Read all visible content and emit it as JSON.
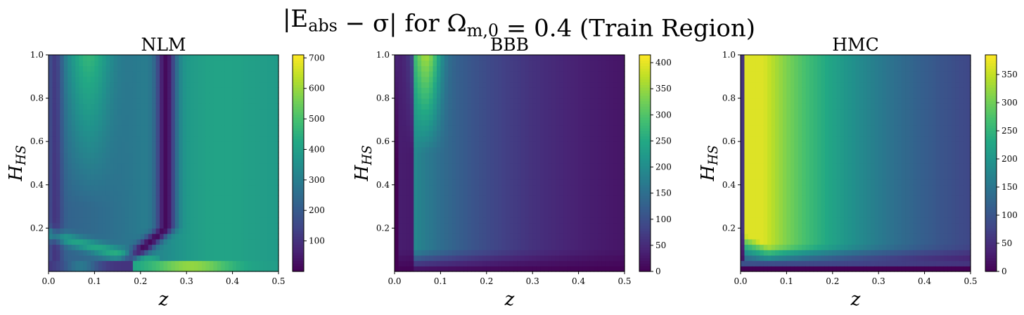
{
  "figure": {
    "suptitle": "|E_abs − σ| for Ω_{m,0} = 0.4 (Train Region)"
  },
  "chart_data": [
    {
      "type": "heatmap",
      "title": "NLM",
      "xlabel": "z",
      "ylabel": "H_HS",
      "xlim": [
        0.0,
        0.5
      ],
      "ylim": [
        0.0,
        1.0
      ],
      "xticks": [
        "0.0",
        "0.1",
        "0.2",
        "0.3",
        "0.4",
        "0.5"
      ],
      "yticks": [
        "0.2",
        "0.4",
        "0.6",
        "0.8",
        "1.0"
      ],
      "colormap": "viridis",
      "colorbar": {
        "range": [
          0,
          710
        ],
        "ticks": [
          "100",
          "200",
          "300",
          "400",
          "500",
          "600",
          "700"
        ]
      },
      "pattern": "nlm"
    },
    {
      "type": "heatmap",
      "title": "BBB",
      "xlabel": "z",
      "ylabel": "H_HS",
      "xlim": [
        0.0,
        0.5
      ],
      "ylim": [
        0.0,
        1.0
      ],
      "xticks": [
        "0.0",
        "0.1",
        "0.2",
        "0.3",
        "0.4",
        "0.5"
      ],
      "yticks": [
        "0.2",
        "0.4",
        "0.6",
        "0.8",
        "1.0"
      ],
      "colormap": "viridis",
      "colorbar": {
        "range": [
          0,
          415
        ],
        "ticks": [
          "0",
          "50",
          "100",
          "150",
          "200",
          "250",
          "300",
          "350",
          "400"
        ]
      },
      "pattern": "bbb"
    },
    {
      "type": "heatmap",
      "title": "HMC",
      "xlabel": "z",
      "ylabel": "H_HS",
      "xlim": [
        0.0,
        0.5
      ],
      "ylim": [
        0.0,
        1.0
      ],
      "xticks": [
        "0.0",
        "0.1",
        "0.2",
        "0.3",
        "0.4",
        "0.5"
      ],
      "yticks": [
        "0.2",
        "0.4",
        "0.6",
        "0.8",
        "1.0"
      ],
      "colormap": "viridis",
      "colorbar": {
        "range": [
          0,
          385
        ],
        "ticks": [
          "0",
          "50",
          "100",
          "150",
          "200",
          "250",
          "300",
          "350"
        ]
      },
      "pattern": "hmc"
    }
  ]
}
